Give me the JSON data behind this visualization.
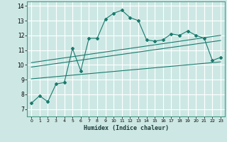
{
  "xlabel": "Humidex (Indice chaleur)",
  "bg_color": "#cde8e4",
  "grid_color": "#ffffff",
  "line_color": "#1a7a6e",
  "xlim": [
    -0.5,
    23.5
  ],
  "ylim": [
    6.5,
    14.3
  ],
  "yticks": [
    7,
    8,
    9,
    10,
    11,
    12,
    13,
    14
  ],
  "xticks": [
    0,
    1,
    2,
    3,
    4,
    5,
    6,
    7,
    8,
    9,
    10,
    11,
    12,
    13,
    14,
    15,
    16,
    17,
    18,
    19,
    20,
    21,
    22,
    23
  ],
  "main_line_x": [
    0,
    1,
    2,
    3,
    4,
    5,
    6,
    7,
    8,
    9,
    10,
    11,
    12,
    13,
    14,
    15,
    16,
    17,
    18,
    19,
    20,
    21,
    22,
    23
  ],
  "main_line_y": [
    7.4,
    7.9,
    7.5,
    8.7,
    8.8,
    11.1,
    9.6,
    11.8,
    11.8,
    13.1,
    13.5,
    13.7,
    13.2,
    13.0,
    11.7,
    11.6,
    11.7,
    12.1,
    12.0,
    12.3,
    12.0,
    11.8,
    10.3,
    10.5
  ],
  "regression_lines": [
    {
      "x0": 0,
      "y0": 9.85,
      "x1": 23,
      "y1": 11.65
    },
    {
      "x0": 0,
      "y0": 10.15,
      "x1": 23,
      "y1": 12.0
    },
    {
      "x0": 0,
      "y0": 9.05,
      "x1": 23,
      "y1": 10.2
    }
  ]
}
